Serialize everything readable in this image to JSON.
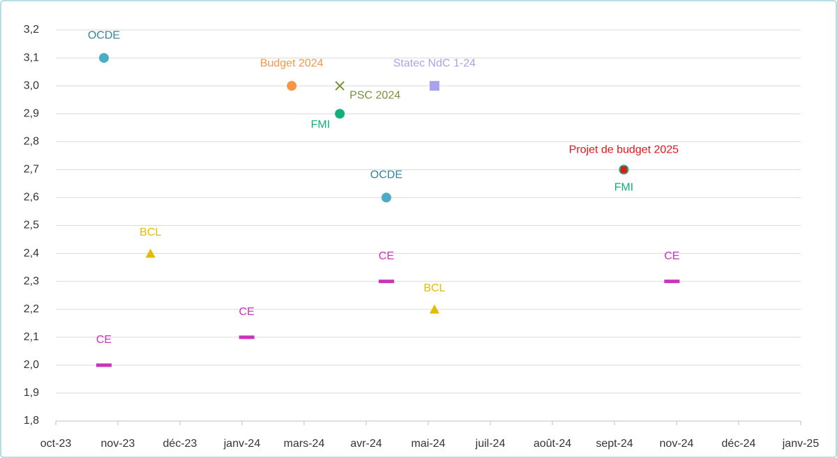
{
  "chart_data": {
    "type": "scatter",
    "xlim": [
      "2023-10-01",
      "2025-01-23"
    ],
    "xticks": [
      {
        "value": "2023-10-01",
        "label": "oct-23"
      },
      {
        "value": "2023-11-10",
        "label": "nov-23"
      },
      {
        "value": "2023-12-20",
        "label": "déc-23"
      },
      {
        "value": "2024-01-29",
        "label": "janv-24"
      },
      {
        "value": "2024-03-09",
        "label": "mars-24"
      },
      {
        "value": "2024-04-18",
        "label": "avr-24"
      },
      {
        "value": "2024-05-28",
        "label": "mai-24"
      },
      {
        "value": "2024-07-07",
        "label": "juil-24"
      },
      {
        "value": "2024-08-16",
        "label": "août-24"
      },
      {
        "value": "2024-09-25",
        "label": "sept-24"
      },
      {
        "value": "2024-11-04",
        "label": "nov-24"
      },
      {
        "value": "2024-12-14",
        "label": "déc-24"
      },
      {
        "value": "2025-01-23",
        "label": "janv-25"
      }
    ],
    "ylim": [
      1.8,
      3.2
    ],
    "yticks": [
      {
        "value": 1.8,
        "label": "1,8"
      },
      {
        "value": 1.9,
        "label": "1,9"
      },
      {
        "value": 2.0,
        "label": "2,0"
      },
      {
        "value": 2.1,
        "label": "2,1"
      },
      {
        "value": 2.2,
        "label": "2,2"
      },
      {
        "value": 2.3,
        "label": "2,3"
      },
      {
        "value": 2.4,
        "label": "2,4"
      },
      {
        "value": 2.5,
        "label": "2,5"
      },
      {
        "value": 2.6,
        "label": "2,6"
      },
      {
        "value": 2.7,
        "label": "2,7"
      },
      {
        "value": 2.8,
        "label": "2,8"
      },
      {
        "value": 2.9,
        "label": "2,9"
      },
      {
        "value": 3.0,
        "label": "3,0"
      },
      {
        "value": 3.1,
        "label": "3,1"
      },
      {
        "value": 3.2,
        "label": "3,2"
      }
    ],
    "grid": true,
    "series": [
      {
        "name": "OCDE",
        "marker": "circle",
        "color": "#4bacc6",
        "label_color": "#31849b",
        "x": [
          "2023-11",
          "2024-05"
        ],
        "values": [
          3.1,
          2.6
        ]
      },
      {
        "name": "Budget 2024",
        "marker": "circle",
        "color": "#f79646",
        "label_color": "#f79646",
        "x": [
          "2024-03"
        ],
        "values": [
          3.0
        ]
      },
      {
        "name": "PSC 2024",
        "marker": "x",
        "color": "#77933c",
        "label_color": "#77933c",
        "x": [
          "2024-04"
        ],
        "values": [
          3.0
        ]
      },
      {
        "name": "FMI",
        "marker": "circle",
        "color": "#13b07a",
        "label_color": "#13b07a",
        "x": [
          "2024-04",
          "2024-10"
        ],
        "values": [
          2.9,
          2.7
        ]
      },
      {
        "name": "Statec NdC 1-24",
        "marker": "square",
        "color": "#a9a2ec",
        "label_color": "#a9a2ec",
        "x": [
          "2024-06"
        ],
        "values": [
          3.0
        ]
      },
      {
        "name": "BCL",
        "marker": "triangle",
        "color": "#e3bc00",
        "label_color": "#e3bc00",
        "x": [
          "2023-12",
          "2024-06"
        ],
        "values": [
          2.4,
          2.2
        ]
      },
      {
        "name": "CE",
        "marker": "dash",
        "color": "#cc33bb",
        "label_color": "#cc33bb",
        "x": [
          "2023-11",
          "2024-02",
          "2024-05",
          "2024-11"
        ],
        "values": [
          2.0,
          2.1,
          2.3,
          2.3
        ]
      },
      {
        "name": "Projet de budget 2025",
        "marker": "square-small",
        "color": "#e8141b",
        "label_color": "#e8141b",
        "x": [
          "2024-10"
        ],
        "values": [
          2.7
        ]
      }
    ]
  }
}
